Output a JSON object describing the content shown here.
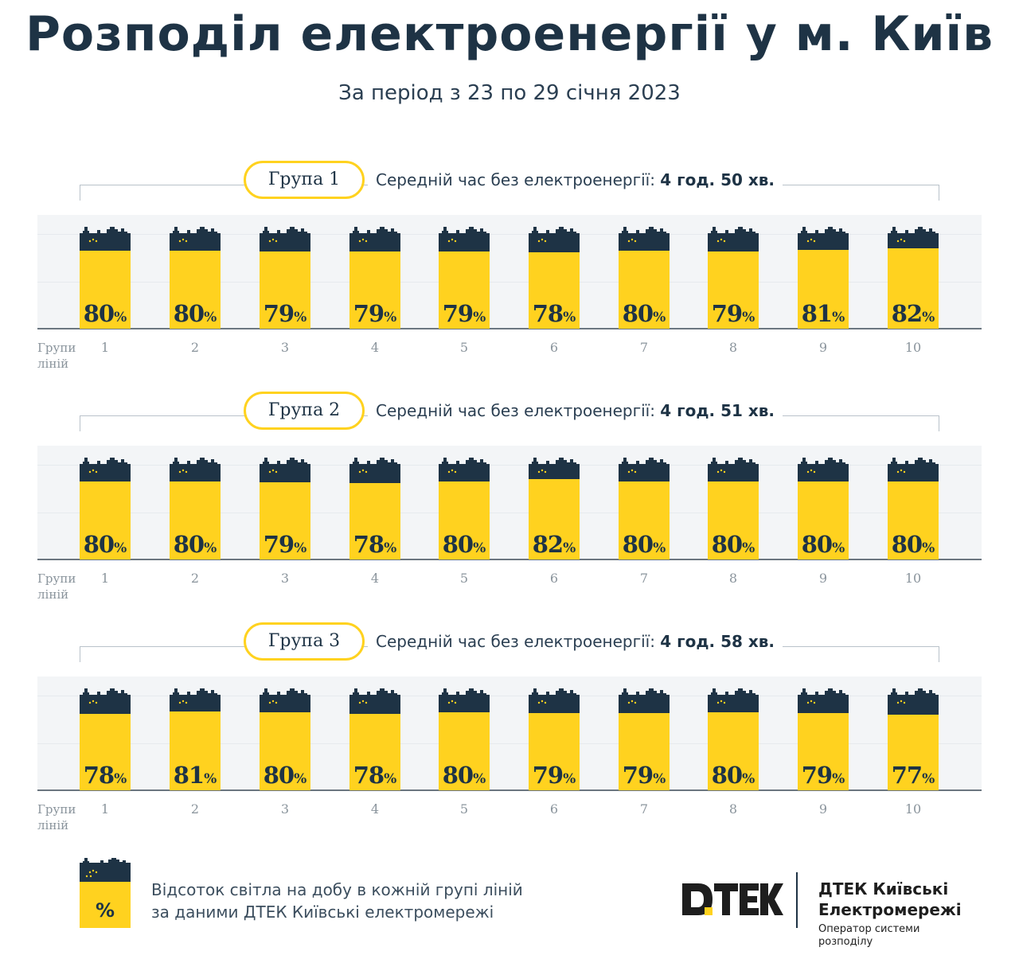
{
  "header": {
    "title": "Розподіл електроенергії у м. Київ",
    "subtitle": "За період з 23 по 29 січня 2023"
  },
  "colors": {
    "fill": "#ffd21f",
    "battery_top": "#1e3345",
    "text": "#1e3345"
  },
  "chart_data": [
    {
      "type": "bar",
      "group_label": "Група 1",
      "avg_label": "Середній час без електроенергії:",
      "avg_value": "4 год. 50 хв.",
      "xlabel": "Групи ліній",
      "categories": [
        "1",
        "2",
        "3",
        "4",
        "5",
        "6",
        "7",
        "8",
        "9",
        "10"
      ],
      "values": [
        80,
        80,
        79,
        79,
        79,
        78,
        80,
        79,
        81,
        82
      ],
      "unit": "%",
      "ylim": [
        0,
        100
      ]
    },
    {
      "type": "bar",
      "group_label": "Група 2",
      "avg_label": "Середній час без електроенергії:",
      "avg_value": "4 год. 51 хв.",
      "xlabel": "Групи ліній",
      "categories": [
        "1",
        "2",
        "3",
        "4",
        "5",
        "6",
        "7",
        "8",
        "9",
        "10"
      ],
      "values": [
        80,
        80,
        79,
        78,
        80,
        82,
        80,
        80,
        80,
        80
      ],
      "unit": "%",
      "ylim": [
        0,
        100
      ]
    },
    {
      "type": "bar",
      "group_label": "Група 3",
      "avg_label": "Середній час без електроенергії:",
      "avg_value": "4 год. 58 хв.",
      "xlabel": "Групи ліній",
      "categories": [
        "1",
        "2",
        "3",
        "4",
        "5",
        "6",
        "7",
        "8",
        "9",
        "10"
      ],
      "values": [
        78,
        81,
        80,
        78,
        80,
        79,
        79,
        80,
        79,
        77
      ],
      "unit": "%",
      "ylim": [
        0,
        100
      ]
    }
  ],
  "legend": {
    "sign": "%",
    "line1": "Відсоток світла на добу в кожній групі ліній",
    "line2": "за даними ДТЕК Київські електромережі"
  },
  "brand": {
    "logo_icon": "dtek-logo-icon",
    "company_line1": "ДТЕК Київські",
    "company_line2": "Електромережі",
    "operator_line1": "Оператор системи",
    "operator_line2": "розподілу"
  }
}
